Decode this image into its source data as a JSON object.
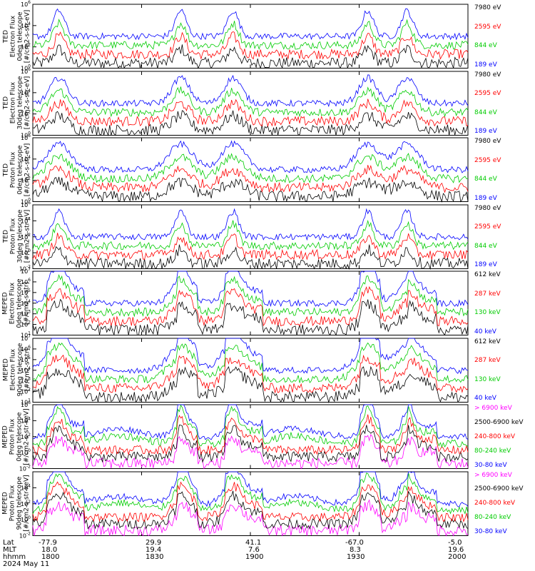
{
  "chart_data": {
    "type": "line",
    "date": "2024 May 11",
    "time_axis": {
      "range": [
        "1800",
        "2000"
      ],
      "ticks": [
        "1800",
        "1830",
        "1900",
        "1930",
        "2000"
      ]
    },
    "panels": [
      {
        "title_lines": [
          "TED",
          "Electron Flux",
          "0deg telescope",
          "[#/cm2-s-str-eV]"
        ],
        "y_ticks": [
          "10^6",
          "10^4",
          "10^2",
          "10^0"
        ],
        "y_log_range": [
          0,
          6
        ],
        "channels": [
          {
            "label": "7980 eV",
            "color": "#000000"
          },
          {
            "label": "2595 eV",
            "color": "#ff0000"
          },
          {
            "label": "844 eV",
            "color": "#00cc00"
          },
          {
            "label": "189 eV",
            "color": "#0000ff"
          }
        ]
      },
      {
        "title_lines": [
          "TED",
          "Electron Flux",
          "30deg telescope",
          "[#/cm2-s-str-eV]"
        ],
        "y_ticks": [
          "10^6",
          "10^4",
          "10^2",
          "10^0"
        ],
        "y_log_range": [
          0,
          6
        ],
        "channels": [
          {
            "label": "7980 eV",
            "color": "#000000"
          },
          {
            "label": "2595 eV",
            "color": "#ff0000"
          },
          {
            "label": "844 eV",
            "color": "#00cc00"
          },
          {
            "label": "189 eV",
            "color": "#0000ff"
          }
        ]
      },
      {
        "title_lines": [
          "TED",
          "Proton Flux",
          "0deg telescope",
          "[#/cm2-s-str-eV]"
        ],
        "y_ticks": [
          "10^6",
          "10^4",
          "10^2",
          "10^0"
        ],
        "y_log_range": [
          0,
          6
        ],
        "channels": [
          {
            "label": "7980 eV",
            "color": "#000000"
          },
          {
            "label": "2595 eV",
            "color": "#ff0000"
          },
          {
            "label": "844 eV",
            "color": "#00cc00"
          },
          {
            "label": "189 eV",
            "color": "#0000ff"
          }
        ]
      },
      {
        "title_lines": [
          "TED",
          "Proton Flux",
          "30deg telescope",
          "[#/cm2-s-str-eV]"
        ],
        "y_ticks": [
          "10^6",
          "10^4",
          "10^2",
          "10^0",
          "10^-2"
        ],
        "y_log_range": [
          -2,
          6
        ],
        "channels": [
          {
            "label": "7980 eV",
            "color": "#000000"
          },
          {
            "label": "2595 eV",
            "color": "#ff0000"
          },
          {
            "label": "844 eV",
            "color": "#00cc00"
          },
          {
            "label": "189 eV",
            "color": "#0000ff"
          }
        ]
      },
      {
        "title_lines": [
          "MEPED",
          "Electron Flux",
          "0deg telescope",
          "[#/cm2-s-str]"
        ],
        "y_ticks": [
          "10^7",
          "10^6",
          "10^5",
          "10^4",
          "10^3",
          "10^2",
          "10^1"
        ],
        "y_log_range": [
          1,
          7
        ],
        "channels": [
          {
            "label": "612 keV",
            "color": "#000000"
          },
          {
            "label": "287 keV",
            "color": "#ff0000"
          },
          {
            "label": "130 keV",
            "color": "#00cc00"
          },
          {
            "label": "40 keV",
            "color": "#0000ff"
          }
        ]
      },
      {
        "title_lines": [
          "MEPED",
          "Electron Flux",
          "90deg telescope",
          "[#/cm2-s-str]"
        ],
        "y_ticks": [
          "10^7",
          "10^6",
          "10^5",
          "10^4",
          "10^3",
          "10^2",
          "10^1"
        ],
        "y_log_range": [
          1,
          7
        ],
        "channels": [
          {
            "label": "612 keV",
            "color": "#000000"
          },
          {
            "label": "287 keV",
            "color": "#ff0000"
          },
          {
            "label": "130 keV",
            "color": "#00cc00"
          },
          {
            "label": "40 keV",
            "color": "#0000ff"
          }
        ]
      },
      {
        "title_lines": [
          "MEPED",
          "Proton Flux",
          "0deg telescope",
          "[#/cm2-s-str-keV]"
        ],
        "y_ticks": [
          "10^6",
          "10^4",
          "10^2",
          "10^0",
          "10^-2"
        ],
        "y_log_range": [
          -2,
          6
        ],
        "channels": [
          {
            "label": "> 6900 keV",
            "color": "#ff00ff"
          },
          {
            "label": "2500-6900 keV",
            "color": "#000000"
          },
          {
            "label": "240-800 keV",
            "color": "#ff0000"
          },
          {
            "label": "80-240 keV",
            "color": "#00cc00"
          },
          {
            "label": "30-80 keV",
            "color": "#0000ff"
          }
        ]
      },
      {
        "title_lines": [
          "MEPED",
          "Proton Flux",
          "90deg telescope",
          "[#/cm2-s-str-keV]"
        ],
        "y_ticks": [
          "10^4",
          "10^2",
          "10^0",
          "10^-2"
        ],
        "y_log_range": [
          -2,
          6
        ],
        "channels": [
          {
            "label": "> 6900 keV",
            "color": "#ff00ff"
          },
          {
            "label": "2500-6900 keV",
            "color": "#000000"
          },
          {
            "label": "240-800 keV",
            "color": "#ff0000"
          },
          {
            "label": "80-240 keV",
            "color": "#00cc00"
          },
          {
            "label": "30-80 keV",
            "color": "#0000ff"
          }
        ]
      }
    ],
    "footer": {
      "row_labels": [
        "Lat",
        "MLT",
        "hhmm",
        "2024 May 11"
      ],
      "columns": [
        {
          "lat": "-77.9",
          "mlt": "18.0",
          "hhmm": "1800"
        },
        {
          "lat": "29.9",
          "mlt": "19.4",
          "hhmm": "1830"
        },
        {
          "lat": "41.1",
          "mlt": "7.6",
          "hhmm": "1900"
        },
        {
          "lat": "-67.0",
          "mlt": "8.3",
          "hhmm": "1930"
        },
        {
          "lat": "-5.0",
          "mlt": "19.6",
          "hhmm": "2000"
        }
      ]
    }
  }
}
